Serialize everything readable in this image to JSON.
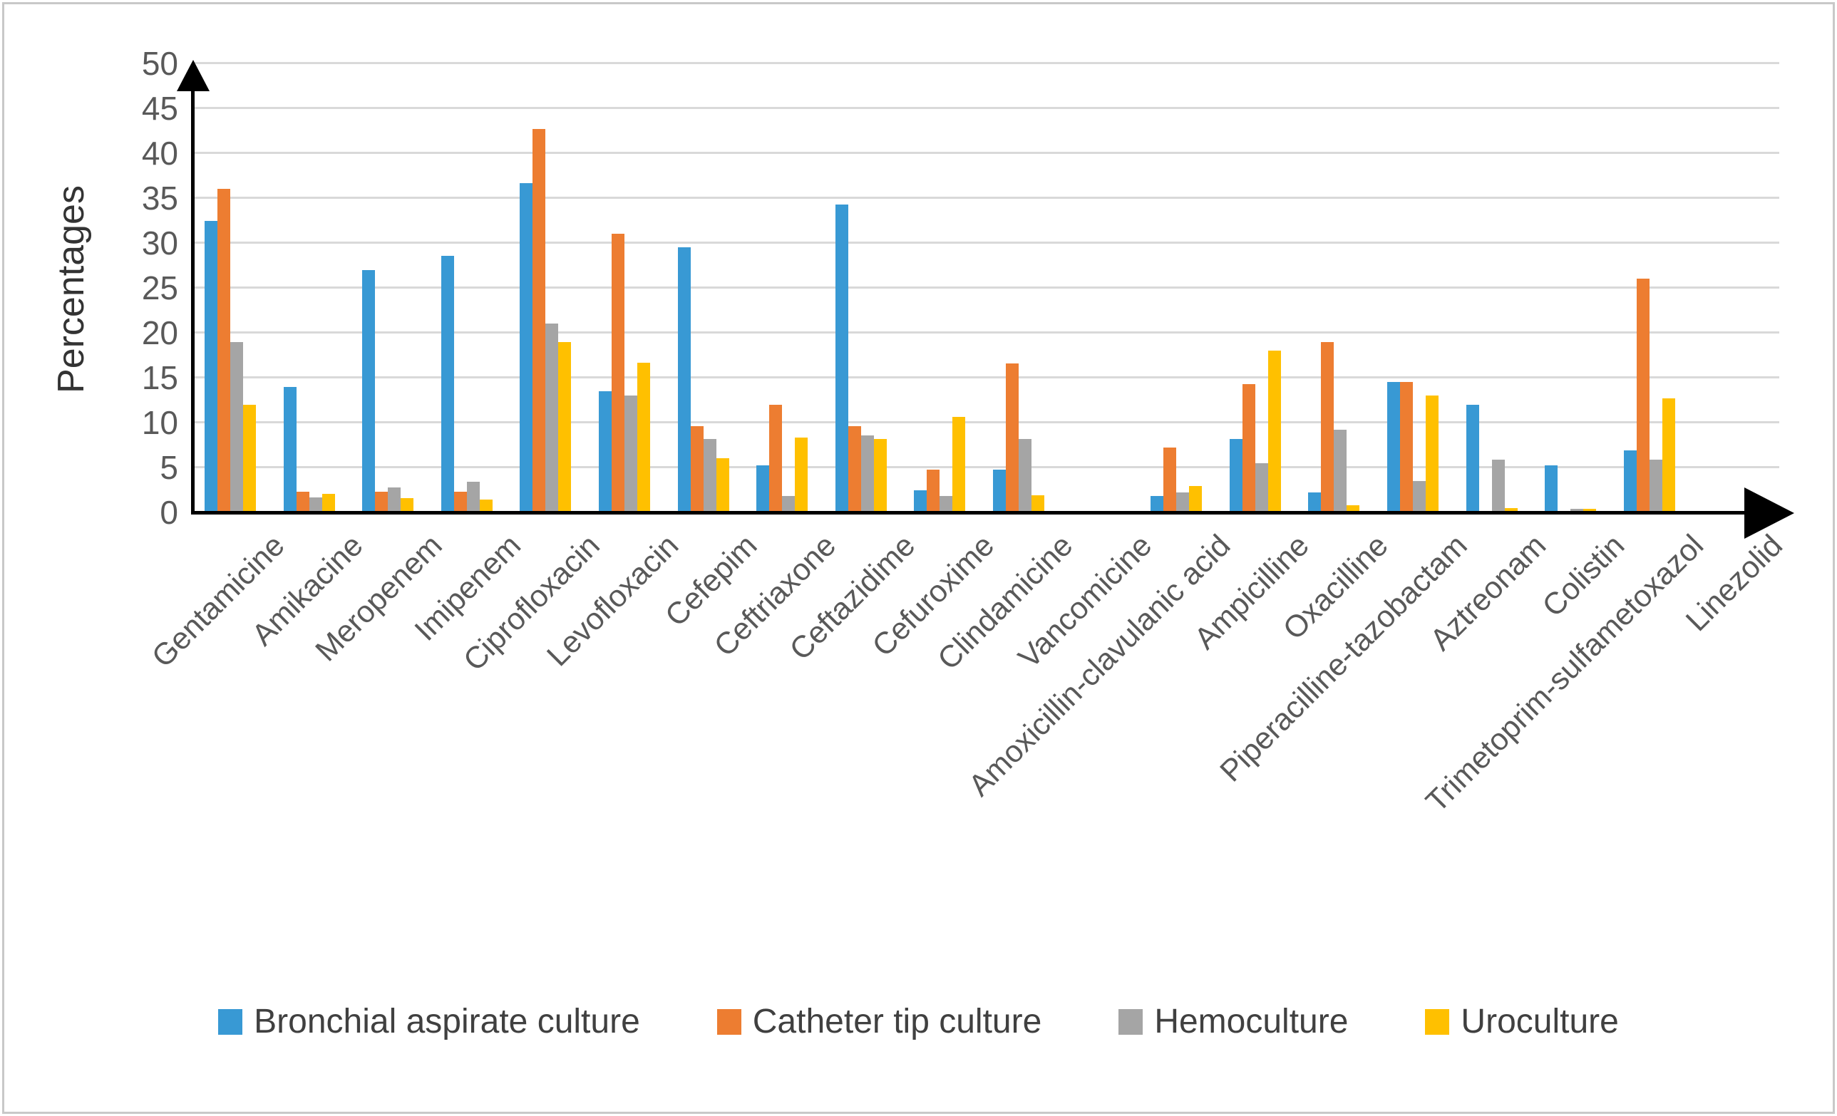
{
  "chart_data": {
    "type": "bar",
    "title": "",
    "xlabel": "",
    "ylabel": "Percentages",
    "ylim": [
      0,
      50
    ],
    "ytick_step": 5,
    "grid": true,
    "legend_position": "bottom",
    "categories": [
      "Gentamicine",
      "Amikacine",
      "Meropenem",
      "Imipenem",
      "Ciprofloxacin",
      "Levofloxacin",
      "Cefepim",
      "Ceftriaxone",
      "Ceftazidime",
      "Cefuroxime",
      "Clindamicine",
      "Vancomicine",
      "Amoxicillin-clavulanic acid",
      "Ampicilline",
      "Oxacilline",
      "Piperacilline-tazobactam",
      "Aztreonam",
      "Colistin",
      "Trimetoprim-sulfametoxazol",
      "Linezolid"
    ],
    "series": [
      {
        "name": "Bronchial aspirate culture",
        "color": "#3899D4",
        "values": [
          32.5,
          14,
          27,
          28.6,
          36.7,
          13.5,
          29.5,
          5.2,
          34.3,
          2.5,
          4.8,
          0,
          1.8,
          8.2,
          2.2,
          14.5,
          12,
          5.2,
          6.9,
          0
        ]
      },
      {
        "name": "Catheter tip culture",
        "color": "#ED7D31",
        "values": [
          36,
          2.3,
          2.3,
          2.3,
          42.7,
          31,
          9.6,
          12,
          9.6,
          4.8,
          16.6,
          0,
          7.2,
          14.3,
          19,
          14.5,
          0,
          0,
          26,
          0
        ]
      },
      {
        "name": "Hemoculture",
        "color": "#A5A5A5",
        "values": [
          19,
          1.7,
          2.8,
          3.4,
          21,
          13,
          8.2,
          1.8,
          8.6,
          1.8,
          8.2,
          0,
          2.2,
          5.5,
          9.2,
          3.5,
          5.9,
          0.4,
          5.9,
          0
        ]
      },
      {
        "name": "Uroculture",
        "color": "#FFC000",
        "values": [
          12,
          2.1,
          1.6,
          1.4,
          19,
          16.7,
          6,
          8.3,
          8.2,
          10.6,
          1.9,
          0,
          2.9,
          18,
          0.8,
          13,
          0.5,
          0.4,
          12.7,
          0
        ]
      }
    ],
    "ytick_labels": [
      "0",
      "5",
      "10",
      "15",
      "20",
      "25",
      "30",
      "35",
      "40",
      "45",
      "50"
    ]
  },
  "style": {
    "gridline_color": "#d9d9d9",
    "axis_color": "#000000",
    "tick_label_color": "#595959",
    "category_label_color": "#595959",
    "y_title_color": "#333333",
    "legend_text_color": "#404040"
  }
}
